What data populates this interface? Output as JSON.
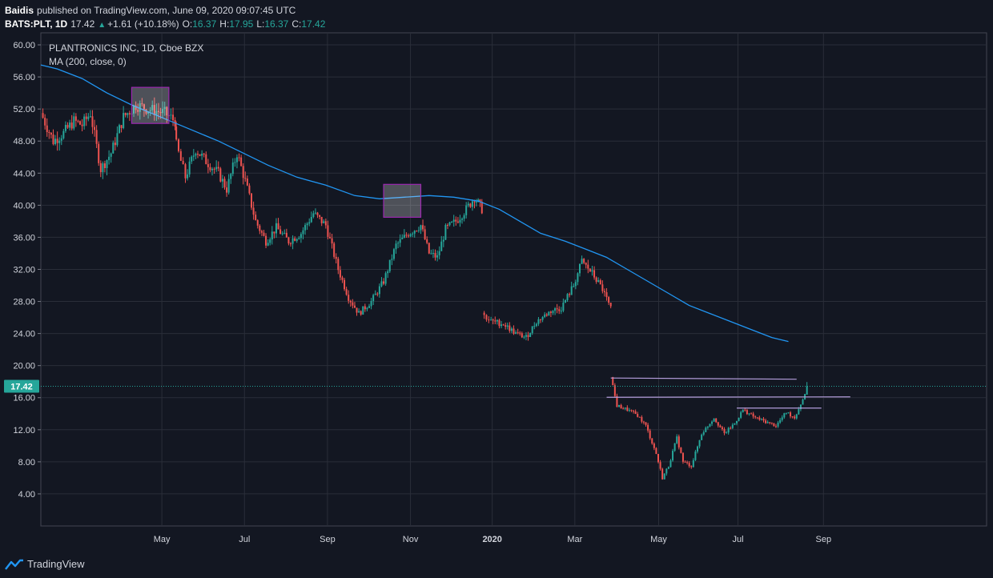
{
  "header": {
    "publisher": "Baidis",
    "published_text": "published on TradingView.com, June 09, 2020 09:07:45 UTC",
    "symbol_line": "BATS:PLT, 1D",
    "last": "17.42",
    "change": "+1.61 (+10.18%)",
    "o_label": "O:",
    "o": "16.37",
    "h_label": "H:",
    "h": "17.95",
    "l_label": "L:",
    "l": "16.37",
    "c_label": "C:",
    "c": "17.42"
  },
  "legend": {
    "title": "PLANTRONICS INC, 1D, Cboe BZX",
    "ma": "MA (200, close, 0)"
  },
  "footer": {
    "brand": "TradingView"
  },
  "colors": {
    "up": "#26a69a",
    "down": "#ef5350",
    "ma": "#2196f3",
    "box": "#9c27b0",
    "bg": "#131722",
    "grid": "#2a2e39"
  },
  "chart_data": {
    "type": "candlestick",
    "title": "PLANTRONICS INC, 1D, Cboe BZX",
    "symbol": "BATS:PLT",
    "ylim": [
      0,
      61.5
    ],
    "y_ticks": [
      "4.00",
      "8.00",
      "12.00",
      "16.00",
      "20.00",
      "24.00",
      "28.00",
      "32.00",
      "36.00",
      "40.00",
      "44.00",
      "48.00",
      "52.00",
      "56.00",
      "60.00"
    ],
    "x_range_months": [
      0,
      22.9
    ],
    "x_ticks": [
      {
        "label": "May",
        "m": 2.93
      },
      {
        "label": "Jul",
        "m": 4.93
      },
      {
        "label": "Sep",
        "m": 6.94
      },
      {
        "label": "Nov",
        "m": 8.95
      },
      {
        "label": "2020",
        "m": 10.93
      },
      {
        "label": "Mar",
        "m": 12.93
      },
      {
        "label": "May",
        "m": 14.96
      },
      {
        "label": "Jul",
        "m": 16.88
      },
      {
        "label": "Sep",
        "m": 18.95
      }
    ],
    "last_price_label": "17.42",
    "last_price": 17.42,
    "price_path": [
      [
        0,
        51.5
      ],
      [
        0.3,
        48.0
      ],
      [
        0.55,
        49.0
      ],
      [
        0.8,
        50.5
      ],
      [
        1.0,
        50.0
      ],
      [
        1.2,
        51.5
      ],
      [
        1.45,
        44.5
      ],
      [
        1.7,
        46.5
      ],
      [
        2.0,
        51.0
      ],
      [
        2.3,
        52.5
      ],
      [
        2.6,
        52.0
      ],
      [
        3.0,
        51.5
      ],
      [
        3.25,
        50.5
      ],
      [
        3.28,
        47.5
      ],
      [
        3.5,
        43.5
      ],
      [
        3.75,
        47.0
      ],
      [
        4.0,
        45.5
      ],
      [
        4.3,
        44.0
      ],
      [
        4.5,
        42.0
      ],
      [
        4.75,
        46.5
      ],
      [
        4.95,
        43.0
      ],
      [
        5.2,
        38.0
      ],
      [
        5.45,
        35.5
      ],
      [
        5.7,
        37.2
      ],
      [
        6.0,
        35.5
      ],
      [
        6.3,
        36.5
      ],
      [
        6.6,
        39.0
      ],
      [
        6.9,
        37.5
      ],
      [
        7.2,
        32.0
      ],
      [
        7.45,
        28.5
      ],
      [
        7.7,
        26.5
      ],
      [
        8.0,
        28.0
      ],
      [
        8.3,
        30.5
      ],
      [
        8.6,
        35.0
      ],
      [
        8.9,
        36.5
      ],
      [
        9.2,
        37.5
      ],
      [
        9.4,
        34.0
      ],
      [
        9.6,
        33.5
      ],
      [
        9.8,
        37.0
      ],
      [
        10.05,
        38.0
      ],
      [
        10.3,
        39.5
      ],
      [
        10.5,
        41.0
      ],
      [
        10.68,
        39.5
      ],
      [
        10.68,
        26.5
      ],
      [
        10.9,
        25.5
      ],
      [
        11.2,
        25.2
      ],
      [
        11.5,
        24.0
      ],
      [
        11.75,
        23.5
      ],
      [
        12.0,
        25.5
      ],
      [
        12.35,
        26.8
      ],
      [
        12.6,
        27.2
      ],
      [
        12.9,
        30.0
      ],
      [
        13.1,
        33.0
      ],
      [
        13.35,
        31.5
      ],
      [
        13.6,
        29.5
      ],
      [
        13.8,
        27.0
      ],
      [
        13.8,
        18.5
      ],
      [
        13.95,
        15.0
      ],
      [
        14.2,
        14.5
      ],
      [
        14.45,
        13.8
      ],
      [
        14.65,
        12.5
      ],
      [
        14.9,
        9.0
      ],
      [
        15.05,
        6.0
      ],
      [
        15.2,
        7.5
      ],
      [
        15.4,
        11.0
      ],
      [
        15.55,
        8.0
      ],
      [
        15.75,
        7.5
      ],
      [
        16.0,
        11.5
      ],
      [
        16.3,
        13.5
      ],
      [
        16.55,
        11.5
      ],
      [
        16.8,
        12.8
      ],
      [
        17.0,
        14.5
      ],
      [
        17.3,
        13.5
      ],
      [
        17.55,
        13.0
      ],
      [
        17.8,
        12.5
      ],
      [
        18.05,
        14.2
      ],
      [
        18.25,
        13.5
      ],
      [
        18.45,
        15.8
      ],
      [
        18.55,
        17.42
      ]
    ],
    "series": [
      {
        "name": "MA (200, close, 0)",
        "type": "line",
        "points": [
          [
            0,
            57.5
          ],
          [
            0.4,
            57.0
          ],
          [
            1.0,
            55.8
          ],
          [
            1.6,
            54.0
          ],
          [
            2.2,
            52.5
          ],
          [
            2.9,
            51.0
          ],
          [
            3.6,
            49.5
          ],
          [
            4.3,
            48.0
          ],
          [
            4.9,
            46.5
          ],
          [
            5.5,
            45.0
          ],
          [
            6.2,
            43.5
          ],
          [
            6.9,
            42.5
          ],
          [
            7.6,
            41.2
          ],
          [
            8.2,
            40.8
          ],
          [
            8.8,
            41.0
          ],
          [
            9.4,
            41.2
          ],
          [
            10.0,
            41.0
          ],
          [
            10.6,
            40.5
          ],
          [
            11.1,
            39.5
          ],
          [
            11.6,
            38.0
          ],
          [
            12.1,
            36.5
          ],
          [
            12.7,
            35.5
          ],
          [
            13.2,
            34.5
          ],
          [
            13.7,
            33.5
          ],
          [
            14.2,
            32.0
          ],
          [
            14.7,
            30.5
          ],
          [
            15.2,
            29.0
          ],
          [
            15.7,
            27.5
          ],
          [
            16.2,
            26.5
          ],
          [
            16.7,
            25.5
          ],
          [
            17.2,
            24.5
          ],
          [
            17.7,
            23.5
          ],
          [
            18.1,
            23.0
          ]
        ]
      }
    ],
    "annotations": [
      {
        "type": "box",
        "m1": 2.2,
        "m2": 3.1,
        "y1": 50.2,
        "y2": 54.7
      },
      {
        "type": "box",
        "m1": 8.3,
        "m2": 9.2,
        "y1": 38.5,
        "y2": 42.6
      },
      {
        "type": "hline",
        "m1": 13.8,
        "m2": 18.3,
        "y1": 18.45,
        "y2": 18.3
      },
      {
        "type": "hline",
        "m1": 13.7,
        "m2": 19.6,
        "y1": 16.05,
        "y2": 16.1
      },
      {
        "type": "hline",
        "m1": 16.85,
        "m2": 18.9,
        "y1": 14.7,
        "y2": 14.7
      }
    ]
  }
}
